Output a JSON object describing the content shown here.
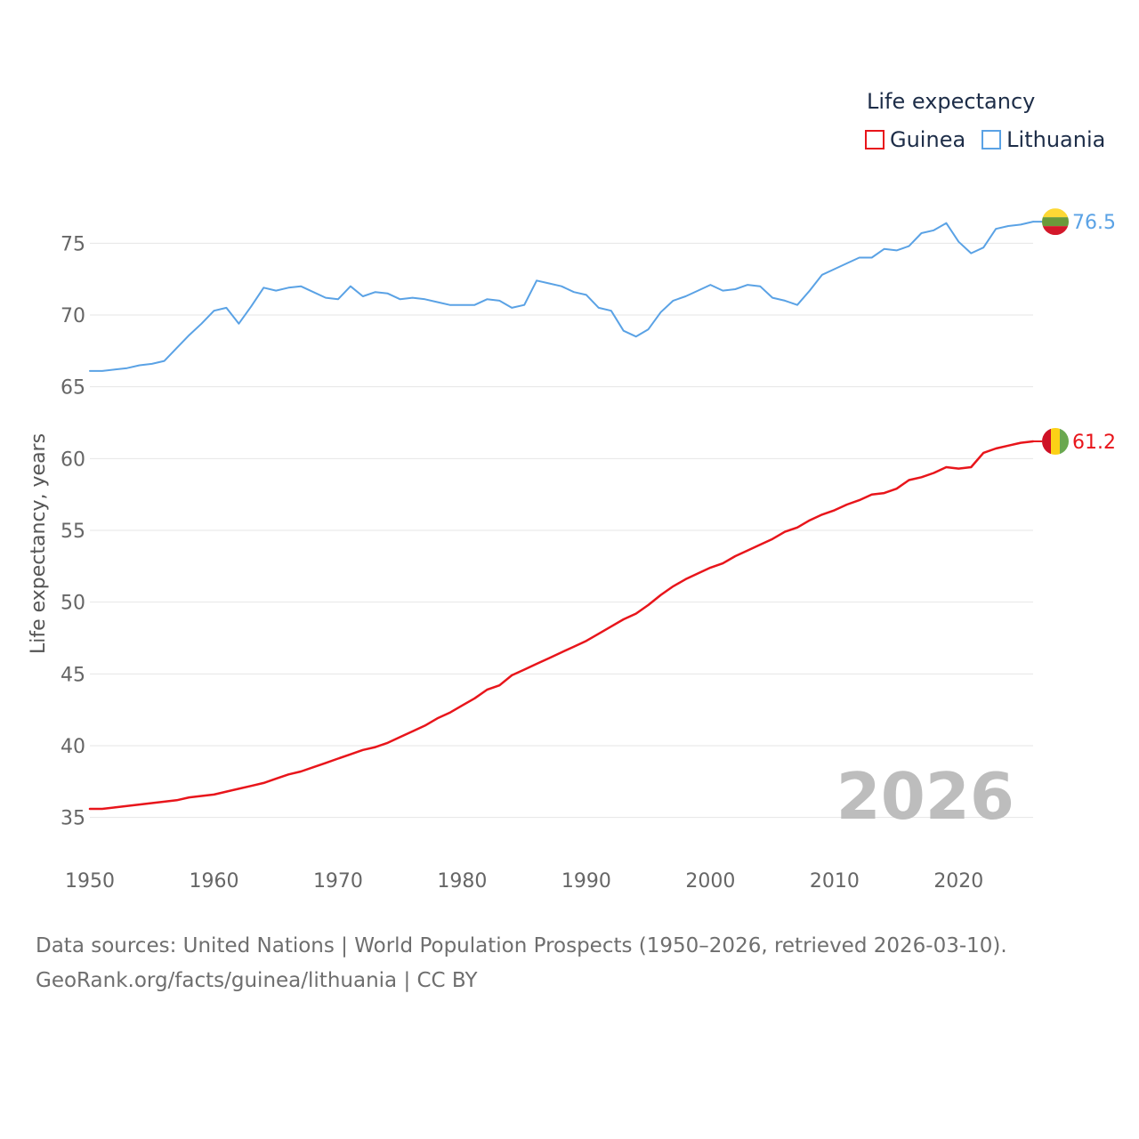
{
  "chart_data": {
    "type": "line",
    "legend_title": "Life expectancy",
    "ylabel": "Life expectancy, years",
    "xlabel": "",
    "xlim": [
      1950,
      2026
    ],
    "ylim": [
      32.5,
      77.5
    ],
    "x_ticks": [
      "1950",
      "1960",
      "1970",
      "1980",
      "1990",
      "2000",
      "2010",
      "2020"
    ],
    "y_ticks": [
      "35",
      "40",
      "45",
      "50",
      "55",
      "60",
      "65",
      "70",
      "75"
    ],
    "year_label": "2026",
    "legend_position": "top-right",
    "x": [
      1950,
      1951,
      1952,
      1953,
      1954,
      1955,
      1956,
      1957,
      1958,
      1959,
      1960,
      1961,
      1962,
      1963,
      1964,
      1965,
      1966,
      1967,
      1968,
      1969,
      1970,
      1971,
      1972,
      1973,
      1974,
      1975,
      1976,
      1977,
      1978,
      1979,
      1980,
      1981,
      1982,
      1983,
      1984,
      1985,
      1986,
      1987,
      1988,
      1989,
      1990,
      1991,
      1992,
      1993,
      1994,
      1995,
      1996,
      1997,
      1998,
      1999,
      2000,
      2001,
      2002,
      2003,
      2004,
      2005,
      2006,
      2007,
      2008,
      2009,
      2010,
      2011,
      2012,
      2013,
      2014,
      2015,
      2016,
      2017,
      2018,
      2019,
      2020,
      2021,
      2022,
      2023,
      2024,
      2025,
      2026
    ],
    "series": [
      {
        "name": "Guinea",
        "color": "#e8151b",
        "end_label": "61.2",
        "flag": "guinea-flag",
        "values": [
          35.6,
          35.6,
          35.7,
          35.8,
          35.9,
          36.0,
          36.1,
          36.2,
          36.4,
          36.5,
          36.6,
          36.8,
          37.0,
          37.2,
          37.4,
          37.7,
          38.0,
          38.2,
          38.5,
          38.8,
          39.1,
          39.4,
          39.7,
          39.9,
          40.2,
          40.6,
          41.0,
          41.4,
          41.9,
          42.3,
          42.8,
          43.3,
          43.9,
          44.2,
          44.9,
          45.3,
          45.7,
          46.1,
          46.5,
          46.9,
          47.3,
          47.8,
          48.3,
          48.8,
          49.2,
          49.8,
          50.5,
          51.1,
          51.6,
          52.0,
          52.4,
          52.7,
          53.2,
          53.6,
          54.0,
          54.4,
          54.9,
          55.2,
          55.7,
          56.1,
          56.4,
          56.8,
          57.1,
          57.5,
          57.6,
          57.9,
          58.5,
          58.7,
          59.0,
          59.4,
          59.3,
          59.4,
          60.4,
          60.7,
          60.9,
          61.1,
          61.2
        ]
      },
      {
        "name": "Lithuania",
        "color": "#5aa2e5",
        "end_label": "76.5",
        "flag": "lithuania-flag",
        "values": [
          66.1,
          66.1,
          66.2,
          66.3,
          66.5,
          66.6,
          66.8,
          67.7,
          68.6,
          69.4,
          70.3,
          70.5,
          69.4,
          70.6,
          71.9,
          71.7,
          71.9,
          72.0,
          71.6,
          71.2,
          71.1,
          72.0,
          71.3,
          71.6,
          71.5,
          71.1,
          71.2,
          71.1,
          70.9,
          70.7,
          70.7,
          70.7,
          71.1,
          71.0,
          70.5,
          70.7,
          72.4,
          72.2,
          72.0,
          71.6,
          71.4,
          70.5,
          70.3,
          68.9,
          68.5,
          69.0,
          70.2,
          71.0,
          71.3,
          71.7,
          72.1,
          71.7,
          71.8,
          72.1,
          72.0,
          71.2,
          71.0,
          70.7,
          71.7,
          72.8,
          73.2,
          73.6,
          74.0,
          74.0,
          74.6,
          74.5,
          74.8,
          75.7,
          75.9,
          76.4,
          75.1,
          74.3,
          74.7,
          76.0,
          76.2,
          76.3,
          76.5
        ]
      }
    ]
  },
  "source": {
    "line1": "Data sources: United Nations | World Population Prospects (1950–2026, retrieved 2026-03-10).",
    "line2": "GeoRank.org/facts/guinea/lithuania | CC BY"
  }
}
